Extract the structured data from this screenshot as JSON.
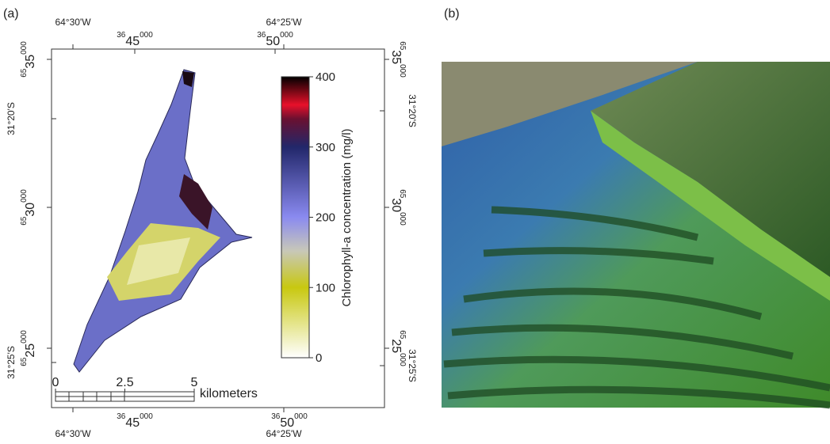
{
  "panel_a": {
    "label": "(a)",
    "top_longitudes": [
      "64°30'W",
      "64°25'W"
    ],
    "bottom_longitudes": [
      "64°30'W",
      "64°25'W"
    ],
    "top_eastings": [
      {
        "pre": "36",
        "main": "45",
        "post": "000"
      },
      {
        "pre": "36",
        "main": "50",
        "post": "000"
      }
    ],
    "bottom_eastings": [
      {
        "pre": "36",
        "main": "45",
        "post": "000"
      },
      {
        "pre": "36",
        "main": "50",
        "post": "000"
      }
    ],
    "left_northings": [
      {
        "pre": "65",
        "main": "35",
        "post": "000"
      },
      {
        "pre": "65",
        "main": "30",
        "post": "000"
      },
      {
        "pre": "65",
        "main": "25",
        "post": "000"
      }
    ],
    "right_northings": [
      {
        "pre": "65",
        "main": "35",
        "post": "000"
      },
      {
        "pre": "65",
        "main": "30",
        "post": "000"
      },
      {
        "pre": "65",
        "main": "25",
        "post": "000"
      }
    ],
    "left_latitudes": [
      "31°20'S",
      "31°25'S"
    ],
    "right_latitudes": [
      "31°20'S",
      "31°25'S"
    ],
    "colorbar": {
      "title": "Chlorophyll-a concentration (mg/l)",
      "lim": [
        0,
        400
      ],
      "ticks": [
        0,
        100,
        200,
        300,
        400
      ]
    },
    "scalebar": {
      "ticks": [
        0,
        2.5,
        5
      ],
      "unit": "kilometers"
    }
  },
  "panel_b": {
    "label": "(b)"
  }
}
